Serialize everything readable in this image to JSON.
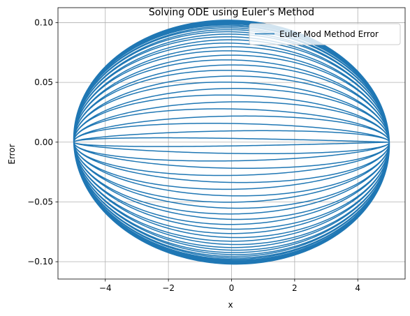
{
  "chart_data": {
    "type": "line",
    "title": "Solving ODE using Euler's Method",
    "xlabel": "x",
    "ylabel": "Error",
    "xlim": [
      -5.5,
      5.5
    ],
    "ylim": [
      -0.1145,
      0.1125
    ],
    "x_ticks": [
      -4,
      -2,
      0,
      2,
      4
    ],
    "x_tick_labels": [
      "−4",
      "−2",
      "0",
      "2",
      "4"
    ],
    "y_ticks": [
      -0.1,
      -0.05,
      0.0,
      0.05,
      0.1
    ],
    "y_tick_labels": [
      "−0.10",
      "−0.05",
      "0.00",
      "0.05",
      "0.10"
    ],
    "grid": true,
    "legend_position": "upper right",
    "series": [
      {
        "name": "Euler Mod Method Error",
        "color": "#1f77b4",
        "shape": "closed elliptical spiral traced repeatedly (about 40 loops)",
        "x_range": [
          -5.0,
          5.0
        ],
        "y_range": [
          -0.103,
          0.102
        ],
        "loops": 40,
        "start": [
          4.95,
          0.0
        ],
        "end": [
          2.5,
          -0.091
        ]
      }
    ]
  }
}
